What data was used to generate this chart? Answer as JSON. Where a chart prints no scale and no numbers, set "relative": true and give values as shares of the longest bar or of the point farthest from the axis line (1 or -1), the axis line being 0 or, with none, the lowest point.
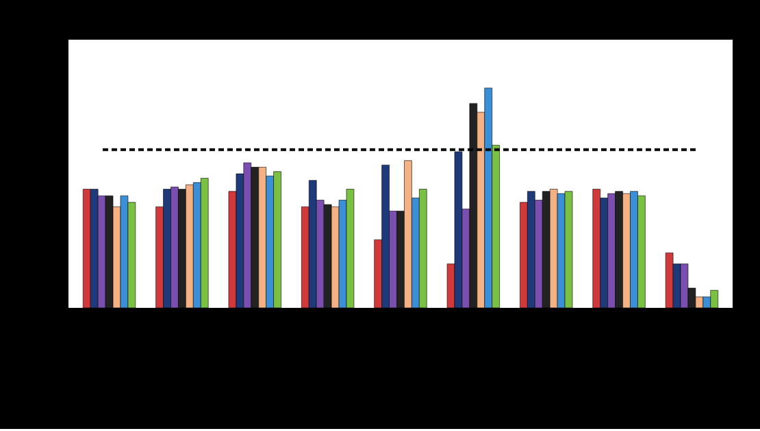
{
  "chart_data": {
    "type": "bar",
    "relative": true,
    "categories": [
      null,
      null,
      null,
      null,
      null,
      null,
      null,
      null,
      null
    ],
    "series": [
      {
        "color": "#d03a3a",
        "values": [
          0.54,
          0.46,
          0.53,
          0.46,
          0.31,
          0.2,
          0.48,
          0.54,
          0.25
        ]
      },
      {
        "color": "#1f3a7a",
        "values": [
          0.54,
          0.54,
          0.61,
          0.58,
          0.65,
          0.71,
          0.53,
          0.5,
          0.2
        ]
      },
      {
        "color": "#7b4fb0",
        "values": [
          0.51,
          0.55,
          0.66,
          0.49,
          0.44,
          0.45,
          0.49,
          0.52,
          0.2
        ]
      },
      {
        "color": "#222222",
        "values": [
          0.51,
          0.54,
          0.64,
          0.47,
          0.44,
          0.93,
          0.53,
          0.53,
          0.09
        ]
      },
      {
        "color": "#f4b183",
        "values": [
          0.46,
          0.56,
          0.64,
          0.46,
          0.67,
          0.89,
          0.54,
          0.52,
          0.05
        ]
      },
      {
        "color": "#3a8fd6",
        "values": [
          0.51,
          0.57,
          0.6,
          0.49,
          0.5,
          1.0,
          0.52,
          0.53,
          0.05
        ]
      },
      {
        "color": "#7ac143",
        "values": [
          0.48,
          0.59,
          0.62,
          0.54,
          0.54,
          0.74,
          0.53,
          0.51,
          0.08
        ]
      }
    ],
    "ref_lines": [
      {
        "axis": "y",
        "value": 0.72,
        "color": "#000000",
        "line_style": "dashed"
      }
    ]
  }
}
